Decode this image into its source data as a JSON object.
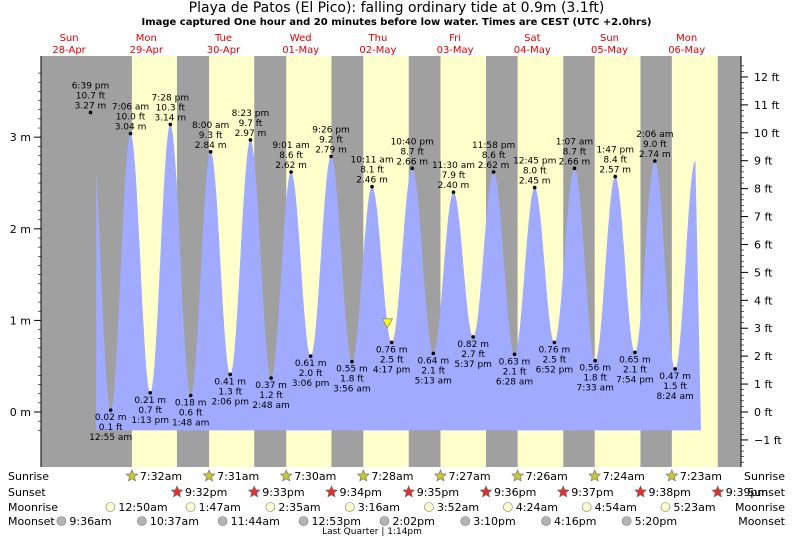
{
  "header": {
    "title": "Playa de Patos (El Pico): falling  ordinary tide at 0.9m (3.1ft)",
    "subtitle": "Image captured One hour and 20 minutes before low water. Times are CEST (UTC +2.0hrs)"
  },
  "chart_data": {
    "type": "area",
    "title": "Playa de Patos (El Pico): falling  ordinary tide at 0.9m (3.1ft)",
    "subtitle": "Image captured One hour and 20 minutes before low water. Times are CEST (UTC +2.0hrs)",
    "days": [
      {
        "dow": "Sun",
        "date": "28-Apr"
      },
      {
        "dow": "Mon",
        "date": "29-Apr"
      },
      {
        "dow": "Tue",
        "date": "30-Apr"
      },
      {
        "dow": "Wed",
        "date": "01-May"
      },
      {
        "dow": "Thu",
        "date": "02-May"
      },
      {
        "dow": "Fri",
        "date": "03-May"
      },
      {
        "dow": "Sat",
        "date": "04-May"
      },
      {
        "dow": "Sun",
        "date": "05-May"
      },
      {
        "dow": "Mon",
        "date": "06-May"
      }
    ],
    "y_left": {
      "unit": "m",
      "ticks": [
        {
          "v": 0,
          "label": "0 m"
        },
        {
          "v": 1,
          "label": "1 m"
        },
        {
          "v": 2,
          "label": "2 m"
        },
        {
          "v": 3,
          "label": "3 m"
        }
      ]
    },
    "y_right": {
      "unit": "ft",
      "ticks": [
        {
          "v": -1,
          "label": "−1 ft"
        },
        {
          "v": 0,
          "label": "0 ft"
        },
        {
          "v": 1,
          "label": "1 ft"
        },
        {
          "v": 2,
          "label": "2 ft"
        },
        {
          "v": 3,
          "label": "3 ft"
        },
        {
          "v": 4,
          "label": "4 ft"
        },
        {
          "v": 5,
          "label": "5 ft"
        },
        {
          "v": 6,
          "label": "6 ft"
        },
        {
          "v": 7,
          "label": "7 ft"
        },
        {
          "v": 8,
          "label": "8 ft"
        },
        {
          "v": 9,
          "label": "9 ft"
        },
        {
          "v": 10,
          "label": "10 ft"
        },
        {
          "v": 11,
          "label": "11 ft"
        },
        {
          "v": 12,
          "label": "12 ft"
        }
      ]
    },
    "ylim_m": [
      -0.2,
      3.8
    ],
    "extremes": [
      {
        "type": "high",
        "day": 0,
        "time": "6:39 pm",
        "h_m": 3.27,
        "h_ft": "10.7 ft",
        "label_m": "3.27 m"
      },
      {
        "type": "low",
        "day": 1,
        "time": "12:55 am",
        "h_m": 0.02,
        "h_ft": "0.1 ft",
        "label_m": "0.02 m"
      },
      {
        "type": "high",
        "day": 1,
        "time": "7:06 am",
        "h_m": 3.04,
        "h_ft": "10.0 ft",
        "label_m": "3.04 m"
      },
      {
        "type": "low",
        "day": 1,
        "time": "1:13 pm",
        "h_m": 0.21,
        "h_ft": "0.7 ft",
        "label_m": "0.21 m"
      },
      {
        "type": "high",
        "day": 1,
        "time": "7:28 pm",
        "h_m": 3.14,
        "h_ft": "10.3 ft",
        "label_m": "3.14 m"
      },
      {
        "type": "low",
        "day": 2,
        "time": "1:48 am",
        "h_m": 0.18,
        "h_ft": "0.6 ft",
        "label_m": "0.18 m"
      },
      {
        "type": "high",
        "day": 2,
        "time": "8:00 am",
        "h_m": 2.84,
        "h_ft": "9.3 ft",
        "label_m": "2.84 m"
      },
      {
        "type": "low",
        "day": 2,
        "time": "2:06 pm",
        "h_m": 0.41,
        "h_ft": "1.3 ft",
        "label_m": "0.41 m"
      },
      {
        "type": "high",
        "day": 2,
        "time": "8:23 pm",
        "h_m": 2.97,
        "h_ft": "9.7 ft",
        "label_m": "2.97 m"
      },
      {
        "type": "low",
        "day": 3,
        "time": "2:48 am",
        "h_m": 0.37,
        "h_ft": "1.2 ft",
        "label_m": "0.37 m"
      },
      {
        "type": "high",
        "day": 3,
        "time": "9:01 am",
        "h_m": 2.62,
        "h_ft": "8.6 ft",
        "label_m": "2.62 m"
      },
      {
        "type": "low",
        "day": 3,
        "time": "3:06 pm",
        "h_m": 0.61,
        "h_ft": "2.0 ft",
        "label_m": "0.61 m"
      },
      {
        "type": "high",
        "day": 3,
        "time": "9:26 pm",
        "h_m": 2.79,
        "h_ft": "9.2 ft",
        "label_m": "2.79 m"
      },
      {
        "type": "low",
        "day": 4,
        "time": "3:56 am",
        "h_m": 0.55,
        "h_ft": "1.8 ft",
        "label_m": "0.55 m"
      },
      {
        "type": "high",
        "day": 4,
        "time": "10:11 am",
        "h_m": 2.46,
        "h_ft": "8.1 ft",
        "label_m": "2.46 m"
      },
      {
        "type": "low",
        "day": 4,
        "time": "4:17 pm",
        "h_m": 0.76,
        "h_ft": "2.5 ft",
        "label_m": "0.76 m"
      },
      {
        "type": "high",
        "day": 4,
        "time": "10:40 pm",
        "h_m": 2.66,
        "h_ft": "8.7 ft",
        "label_m": "2.66 m"
      },
      {
        "type": "low",
        "day": 5,
        "time": "5:13 am",
        "h_m": 0.64,
        "h_ft": "2.1 ft",
        "label_m": "0.64 m"
      },
      {
        "type": "high",
        "day": 5,
        "time": "11:30 am",
        "h_m": 2.4,
        "h_ft": "7.9 ft",
        "label_m": "2.40 m"
      },
      {
        "type": "low",
        "day": 5,
        "time": "5:37 pm",
        "h_m": 0.82,
        "h_ft": "2.7 ft",
        "label_m": "0.82 m"
      },
      {
        "type": "high",
        "day": 5,
        "time": "11:58 pm",
        "h_m": 2.62,
        "h_ft": "8.6 ft",
        "label_m": "2.62 m"
      },
      {
        "type": "low",
        "day": 6,
        "time": "6:28 am",
        "h_m": 0.63,
        "h_ft": "2.1 ft",
        "label_m": "0.63 m"
      },
      {
        "type": "high",
        "day": 6,
        "time": "12:45 pm",
        "h_m": 2.45,
        "h_ft": "8.0 ft",
        "label_m": "2.45 m"
      },
      {
        "type": "low",
        "day": 6,
        "time": "6:52 pm",
        "h_m": 0.76,
        "h_ft": "2.5 ft",
        "label_m": "0.76 m"
      },
      {
        "type": "high",
        "day": 7,
        "time": "1:07 am",
        "h_m": 2.66,
        "h_ft": "8.7 ft",
        "label_m": "2.66 m"
      },
      {
        "type": "low",
        "day": 7,
        "time": "7:33 am",
        "h_m": 0.56,
        "h_ft": "1.8 ft",
        "label_m": "0.56 m"
      },
      {
        "type": "high",
        "day": 7,
        "time": "1:47 pm",
        "h_m": 2.57,
        "h_ft": "8.4 ft",
        "label_m": "2.57 m"
      },
      {
        "type": "low",
        "day": 7,
        "time": "7:54 pm",
        "h_m": 0.65,
        "h_ft": "2.1 ft",
        "label_m": "0.65 m"
      },
      {
        "type": "high",
        "day": 8,
        "time": "2:06 am",
        "h_m": 2.74,
        "h_ft": "9.0 ft",
        "label_m": "2.74 m"
      },
      {
        "type": "low",
        "day": 8,
        "time": "8:24 am",
        "h_m": 0.47,
        "h_ft": "1.5 ft",
        "label_m": "0.47 m"
      }
    ],
    "current": {
      "day": 4,
      "time": "2:57 pm",
      "h_m": 0.93,
      "note": "falling ordinary tide at 0.9m (3.1ft)"
    },
    "sunrise": [
      {
        "day": 1,
        "time": "7:32am"
      },
      {
        "day": 2,
        "time": "7:31am"
      },
      {
        "day": 3,
        "time": "7:30am"
      },
      {
        "day": 4,
        "time": "7:28am"
      },
      {
        "day": 5,
        "time": "7:27am"
      },
      {
        "day": 6,
        "time": "7:26am"
      },
      {
        "day": 7,
        "time": "7:24am"
      },
      {
        "day": 8,
        "time": "7:23am"
      }
    ],
    "sunset": [
      {
        "day": 1,
        "time": "9:32pm"
      },
      {
        "day": 2,
        "time": "9:33pm"
      },
      {
        "day": 3,
        "time": "9:34pm"
      },
      {
        "day": 4,
        "time": "9:35pm"
      },
      {
        "day": 5,
        "time": "9:36pm"
      },
      {
        "day": 6,
        "time": "9:37pm"
      },
      {
        "day": 7,
        "time": "9:38pm"
      },
      {
        "day": 8,
        "time": "9:39pm"
      }
    ],
    "moonrise": [
      {
        "day": 1,
        "time": "12:50am"
      },
      {
        "day": 2,
        "time": "1:47am"
      },
      {
        "day": 3,
        "time": "2:35am"
      },
      {
        "day": 4,
        "time": "3:16am"
      },
      {
        "day": 5,
        "time": "3:52am"
      },
      {
        "day": 6,
        "time": "4:24am"
      },
      {
        "day": 7,
        "time": "4:54am"
      },
      {
        "day": 8,
        "time": "5:23am"
      }
    ],
    "moonset": [
      {
        "day": 0,
        "time": "9:36am"
      },
      {
        "day": 1,
        "time": "10:37am"
      },
      {
        "day": 2,
        "time": "11:44am"
      },
      {
        "day": 3,
        "time": "12:53pm"
      },
      {
        "day": 4,
        "time": "2:02pm"
      },
      {
        "day": 5,
        "time": "3:10pm"
      },
      {
        "day": 6,
        "time": "4:16pm"
      },
      {
        "day": 7,
        "time": "5:20pm"
      }
    ],
    "moon_phase": {
      "day": 4,
      "label": "Last Quarter | 1:14pm"
    },
    "row_labels": {
      "sunrise": "Sunrise",
      "sunset": "Sunset",
      "moonrise": "Moonrise",
      "moonset": "Moonset"
    },
    "colors": {
      "water": "#a0aaff",
      "day": "#ffffcc",
      "night": "#a0a0a0",
      "day_label": "#e00000",
      "star_sunrise": "#c8c832",
      "star_sunset": "#e03030",
      "moon_rise": "#ffffcc",
      "moon_set": "#b4b4b4",
      "marker": "#ffff00"
    }
  }
}
